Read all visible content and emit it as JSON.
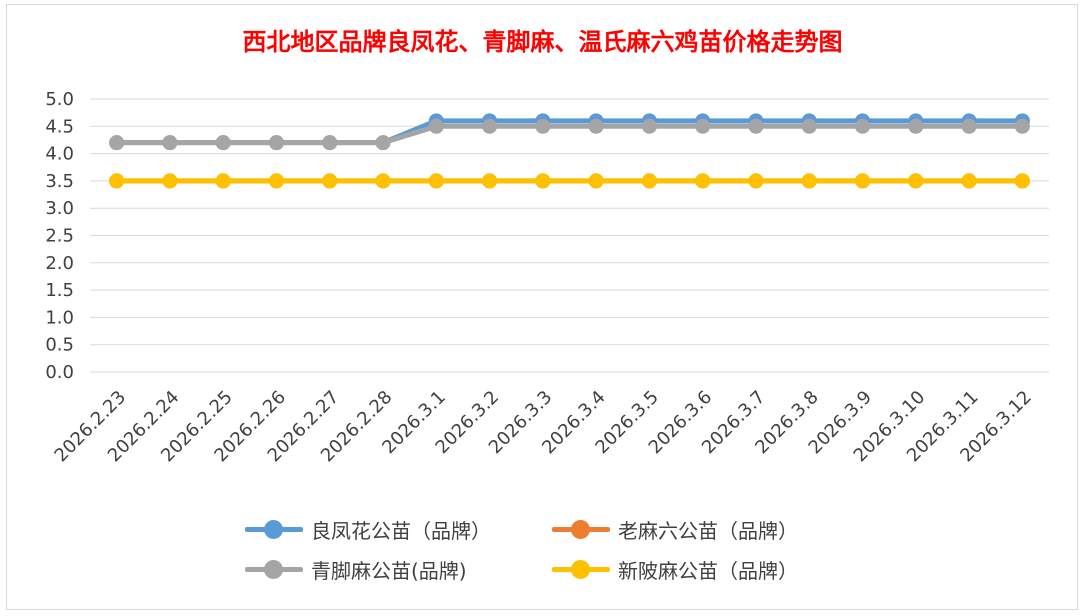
{
  "chart_data": {
    "type": "line",
    "title": "西北地区品牌良凤花、青脚麻、温氏麻六鸡苗价格走势图",
    "categories": [
      "2026.2.23",
      "2026.2.24",
      "2026.2.25",
      "2026.2.26",
      "2026.2.27",
      "2026.2.28",
      "2026.3.1",
      "2026.3.2",
      "2026.3.3",
      "2026.3.4",
      "2026.3.5",
      "2026.3.6",
      "2026.3.7",
      "2026.3.8",
      "2026.3.9",
      "2026.3.10",
      "2026.3.11",
      "2026.3.12"
    ],
    "ylim": [
      0,
      5
    ],
    "yticks": [
      "0.0",
      "0.5",
      "1.0",
      "1.5",
      "2.0",
      "2.5",
      "3.0",
      "3.5",
      "4.0",
      "4.5",
      "5.0"
    ],
    "grid": true,
    "legend_position": "bottom",
    "series": [
      {
        "name": "良凤花公苗（品牌）",
        "color": "#5b9bd5",
        "values": [
          4.2,
          4.2,
          4.2,
          4.2,
          4.2,
          4.2,
          4.6,
          4.6,
          4.6,
          4.6,
          4.6,
          4.6,
          4.6,
          4.6,
          4.6,
          4.6,
          4.6,
          4.6
        ]
      },
      {
        "name": "老麻六公苗（品牌）",
        "color": "#ed7d31",
        "values": [
          3.5,
          3.5,
          3.5,
          3.5,
          3.5,
          3.5,
          3.5,
          3.5,
          3.5,
          3.5,
          3.5,
          3.5,
          3.5,
          3.5,
          3.5,
          3.5,
          3.5,
          3.5
        ]
      },
      {
        "name": "青脚麻公苗(品牌)",
        "color": "#a5a5a5",
        "values": [
          4.2,
          4.2,
          4.2,
          4.2,
          4.2,
          4.2,
          4.5,
          4.5,
          4.5,
          4.5,
          4.5,
          4.5,
          4.5,
          4.5,
          4.5,
          4.5,
          4.5,
          4.5
        ]
      },
      {
        "name": "新陂麻公苗（品牌）",
        "color": "#ffc000",
        "values": [
          3.5,
          3.5,
          3.5,
          3.5,
          3.5,
          3.5,
          3.5,
          3.5,
          3.5,
          3.5,
          3.5,
          3.5,
          3.5,
          3.5,
          3.5,
          3.5,
          3.5,
          3.5
        ]
      }
    ]
  }
}
